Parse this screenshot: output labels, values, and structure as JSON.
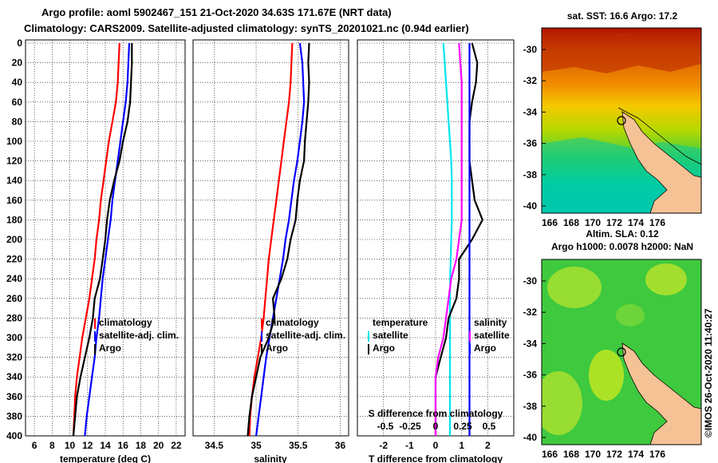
{
  "header": {
    "title_line1": "Argo profile: aoml 5902467_151 21-Oct-2020 34.63S 171.67E (NRT data)",
    "title_line2": "Climatology: CARS2009. Satellite-adjusted climatology: synTS_20201021.nc (0.94d earlier)"
  },
  "chart_data": [
    {
      "type": "line",
      "panel": "temperature",
      "xlabel": "temperature (deg C)",
      "xlim": [
        5,
        23
      ],
      "xticks": [
        6,
        8,
        10,
        12,
        14,
        16,
        18,
        20,
        22
      ],
      "ylim": [
        400,
        0
      ],
      "yticks": [
        0,
        20,
        40,
        60,
        80,
        100,
        120,
        140,
        160,
        180,
        200,
        220,
        240,
        260,
        280,
        300,
        320,
        340,
        360,
        380,
        400
      ],
      "legend": [
        "climatology",
        "satellite-adj. clim.",
        "Argo"
      ],
      "series": [
        {
          "name": "climatology",
          "color": "#ff0000",
          "x": [
            15.6,
            15.5,
            15.4,
            15.2,
            14.8,
            14.4,
            14.1,
            13.8,
            13.5,
            13.3,
            13.0,
            12.8,
            12.5,
            12.2,
            11.8,
            11.4,
            11.1,
            10.8,
            10.6,
            10.5,
            10.4
          ],
          "y": [
            0,
            20,
            40,
            60,
            80,
            100,
            120,
            140,
            160,
            180,
            200,
            220,
            240,
            260,
            280,
            300,
            320,
            340,
            360,
            380,
            400
          ]
        },
        {
          "name": "satellite-adj. clim.",
          "color": "#0000ff",
          "x": [
            16.7,
            16.6,
            16.5,
            16.3,
            16.0,
            15.7,
            15.4,
            15.1,
            14.8,
            14.6,
            14.3,
            14.0,
            13.7,
            13.5,
            13.3,
            13.0,
            12.8,
            12.5,
            12.2,
            11.9,
            11.7
          ],
          "y": [
            0,
            20,
            40,
            60,
            80,
            100,
            120,
            140,
            160,
            180,
            200,
            220,
            240,
            260,
            280,
            300,
            320,
            340,
            360,
            380,
            400
          ]
        },
        {
          "name": "Argo",
          "color": "#000000",
          "x": [
            17.0,
            17.0,
            16.9,
            16.8,
            16.5,
            16.0,
            15.6,
            15.0,
            14.5,
            14.2,
            14.0,
            13.7,
            13.4,
            12.8,
            12.6,
            12.2,
            11.7,
            11.2,
            10.8,
            10.6,
            10.4
          ],
          "y": [
            0,
            20,
            40,
            60,
            80,
            100,
            120,
            140,
            160,
            180,
            200,
            220,
            240,
            260,
            280,
            300,
            320,
            340,
            360,
            380,
            400
          ]
        }
      ]
    },
    {
      "type": "line",
      "panel": "salinity",
      "xlabel": "salinity",
      "xlim": [
        34.25,
        36.1
      ],
      "xticks": [
        34.5,
        35,
        35.5,
        36
      ],
      "xtick_labels": [
        "34.5",
        "35",
        "35.5",
        "36"
      ],
      "ylim": [
        400,
        0
      ],
      "legend": [
        "climatology",
        "satellite-adj. clim.",
        "Argo"
      ],
      "series": [
        {
          "name": "climatology",
          "color": "#ff0000",
          "x": [
            35.43,
            35.42,
            35.41,
            35.39,
            35.36,
            35.33,
            35.3,
            35.27,
            35.24,
            35.21,
            35.18,
            35.15,
            35.13,
            35.11,
            35.09,
            35.06,
            35.02,
            34.98,
            34.95,
            34.93,
            34.92
          ],
          "y": [
            0,
            20,
            40,
            60,
            80,
            100,
            120,
            140,
            160,
            180,
            200,
            220,
            240,
            260,
            280,
            300,
            320,
            340,
            360,
            380,
            400
          ]
        },
        {
          "name": "satellite-adj. clim.",
          "color": "#0000ff",
          "x": [
            35.52,
            35.55,
            35.56,
            35.57,
            35.55,
            35.52,
            35.49,
            35.45,
            35.42,
            35.39,
            35.35,
            35.32,
            35.28,
            35.24,
            35.2,
            35.16,
            35.12,
            35.09,
            35.06,
            35.03,
            35.0
          ],
          "y": [
            0,
            20,
            40,
            60,
            80,
            100,
            120,
            140,
            160,
            180,
            200,
            220,
            240,
            260,
            280,
            300,
            320,
            340,
            360,
            380,
            400
          ]
        },
        {
          "name": "Argo",
          "color": "#000000",
          "x": [
            35.63,
            35.62,
            35.63,
            35.62,
            35.6,
            35.58,
            35.57,
            35.52,
            35.49,
            35.47,
            35.41,
            35.37,
            35.3,
            35.2,
            35.22,
            35.15,
            35.05,
            35.0,
            34.95,
            34.92,
            34.9
          ],
          "y": [
            0,
            20,
            40,
            60,
            80,
            100,
            120,
            140,
            160,
            180,
            200,
            220,
            240,
            260,
            280,
            300,
            320,
            340,
            360,
            380,
            400
          ]
        }
      ]
    },
    {
      "type": "line",
      "panel": "difference",
      "xlabel": "T difference from climatology",
      "xlim": [
        -3,
        3
      ],
      "xticks": [
        -2,
        -1,
        0,
        1,
        2
      ],
      "top_axis_label": "S difference from climatology",
      "top_axis_ticks": [
        "-0.5",
        "-0.25",
        "0",
        "0.25",
        "0.5"
      ],
      "ylim": [
        400,
        0
      ],
      "legend_left_title": "temperature",
      "legend_left": [
        "satellite",
        "Argo"
      ],
      "legend_right_title": "salinity",
      "legend_right": [
        "satellite",
        "Argo"
      ],
      "series": [
        {
          "name": "temperature satellite",
          "color": "#00e5ee",
          "x": [
            0.3,
            0.35,
            0.4,
            0.45,
            0.5,
            0.55,
            0.6,
            0.62,
            0.62,
            0.62,
            0.6,
            0.58,
            0.56,
            0.55,
            0.55,
            0.55,
            0.55,
            0.55,
            0.55,
            0.55,
            0.55
          ],
          "y": [
            0,
            20,
            40,
            60,
            80,
            100,
            120,
            140,
            160,
            180,
            200,
            220,
            240,
            260,
            280,
            300,
            320,
            340,
            360,
            380,
            400
          ]
        },
        {
          "name": "temperature Argo",
          "color": "#000000",
          "x": [
            1.4,
            1.6,
            1.55,
            1.4,
            1.3,
            1.3,
            1.3,
            1.4,
            1.5,
            1.8,
            1.4,
            0.9,
            0.9,
            0.8,
            0.5,
            0.4,
            0.2,
            0.0,
            0.0,
            0.0,
            0.0
          ],
          "y": [
            0,
            20,
            40,
            60,
            80,
            100,
            120,
            140,
            160,
            180,
            200,
            220,
            240,
            260,
            280,
            300,
            320,
            340,
            360,
            380,
            400
          ]
        },
        {
          "name": "salinity satellite",
          "color": "#ff00ff",
          "x": [
            0.9,
            0.95,
            1.0,
            1.0,
            1.0,
            1.0,
            1.0,
            1.0,
            1.0,
            1.0,
            0.9,
            0.8,
            0.6,
            0.5,
            0.4,
            0.3,
            0.1,
            0.0,
            0.0,
            0.0,
            0.0
          ],
          "y": [
            0,
            20,
            40,
            60,
            80,
            100,
            120,
            140,
            160,
            180,
            200,
            220,
            240,
            260,
            280,
            300,
            320,
            340,
            360,
            380,
            400
          ]
        },
        {
          "name": "salinity Argo",
          "color": "#0000ff",
          "x": [
            1.3,
            1.3,
            1.3,
            1.3,
            1.3,
            1.3,
            1.3,
            1.3,
            1.3,
            1.3,
            1.3,
            1.3,
            1.3,
            1.3,
            1.3,
            1.3,
            1.3,
            1.3,
            1.3,
            1.3,
            1.3
          ],
          "y": [
            0,
            20,
            40,
            60,
            80,
            100,
            120,
            140,
            160,
            180,
            200,
            220,
            240,
            260,
            280,
            300,
            320,
            340,
            360,
            380,
            400
          ]
        }
      ]
    },
    {
      "type": "heatmap",
      "panel": "sst_map",
      "title": "sat. SST: 16.6 Argo: 17.2",
      "xticks": [
        "166",
        "168",
        "170",
        "172",
        "174",
        "176"
      ],
      "yticks": [
        "-30",
        "-32",
        "-34",
        "-36",
        "-38",
        "-40"
      ]
    },
    {
      "type": "heatmap",
      "panel": "sla_map",
      "title_line1": "Altim. SLA: 0.12",
      "title_line2": "Argo h1000: 0.0078 h2000: NaN",
      "xticks": [
        "166",
        "168",
        "170",
        "172",
        "174",
        "176"
      ],
      "yticks": [
        "-30",
        "-32",
        "-34",
        "-36",
        "-38",
        "-40"
      ]
    }
  ],
  "footer": {
    "stamp": "©IMOS 26-Oct-2020 11:40:27"
  }
}
